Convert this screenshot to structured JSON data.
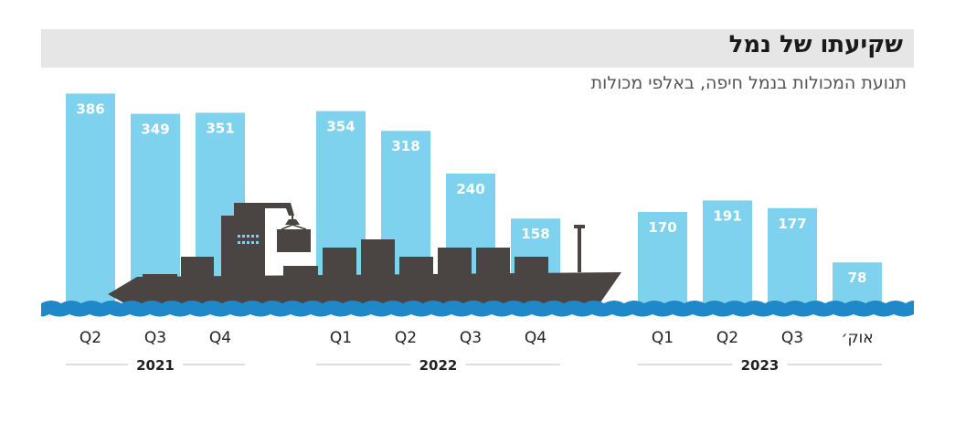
{
  "chart_data": {
    "type": "bar",
    "title": "שקיעתו של נמל",
    "subtitle": "תנועת המכולות בנמל חיפה, באלפי מכולות",
    "groups": [
      {
        "label": "2021",
        "categories": [
          "Q2",
          "Q3",
          "Q4"
        ],
        "values": [
          386,
          349,
          351
        ]
      },
      {
        "label": "2022",
        "categories": [
          "Q1",
          "Q2",
          "Q3",
          "Q4"
        ],
        "values": [
          354,
          318,
          240,
          158
        ]
      },
      {
        "label": "2023",
        "categories": [
          "Q1",
          "Q2",
          "Q3",
          "אוק׳"
        ],
        "values": [
          170,
          191,
          177,
          78
        ]
      }
    ],
    "ylim": [
      0,
      400
    ],
    "grid": false,
    "colors": {
      "bar": "#7fd2ee",
      "bar_label": "#ffffff",
      "water": "#1e88c8",
      "ship": "#4a4542",
      "tick_text": "#222222",
      "year_line": "#bbbbbb"
    }
  }
}
